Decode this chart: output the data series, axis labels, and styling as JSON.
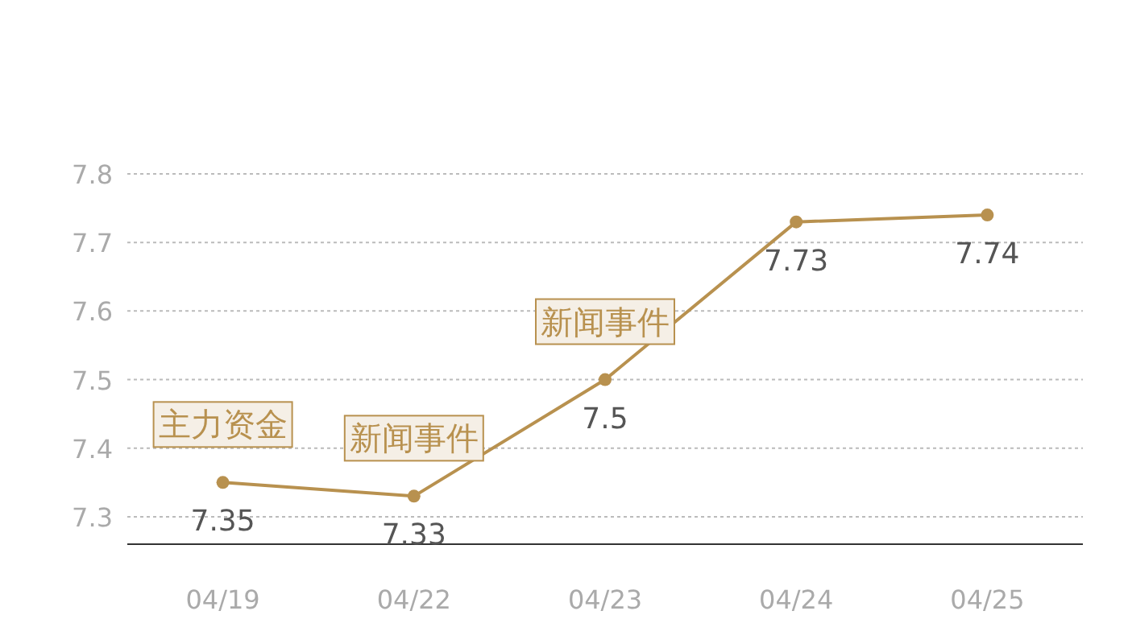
{
  "chart_data": {
    "type": "line",
    "categories": [
      "04/19",
      "04/22",
      "04/23",
      "04/24",
      "04/25"
    ],
    "series": [
      {
        "color": "#b8914f",
        "values": [
          7.35,
          7.33,
          7.5,
          7.73,
          7.74
        ]
      }
    ],
    "ylim": [
      7.26,
      7.8
    ],
    "yticks": [
      7.3,
      7.4,
      7.5,
      7.6,
      7.7,
      7.8
    ],
    "grid": "y",
    "marker": "circle",
    "line_style": "solid",
    "data_labels": true,
    "annotations": [
      {
        "text": "主力资金",
        "x": "04/19",
        "y": 7.35
      },
      {
        "text": "新闻事件",
        "x": "04/22",
        "y": 7.33
      },
      {
        "text": "新闻事件",
        "x": "04/23",
        "y": 7.5
      }
    ]
  }
}
